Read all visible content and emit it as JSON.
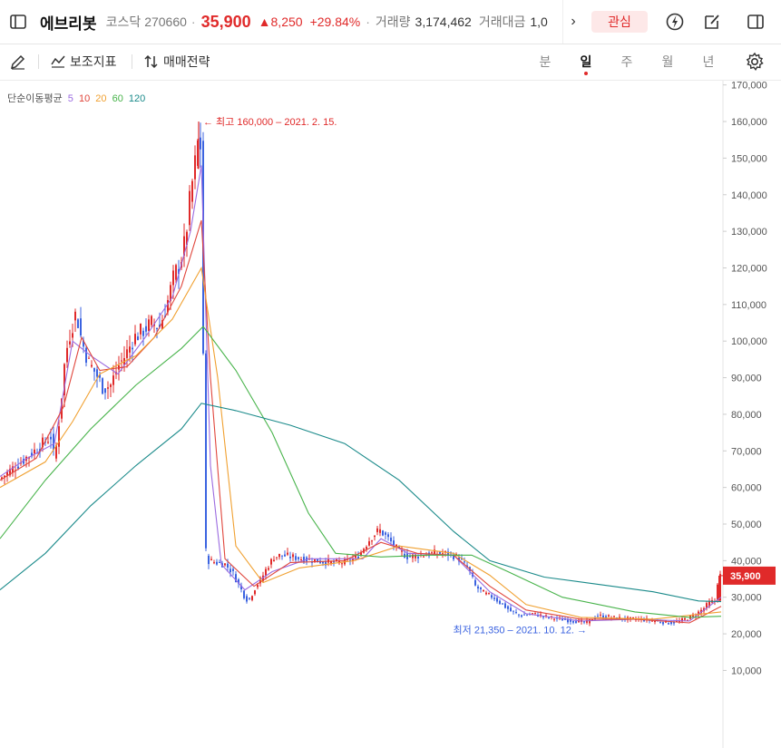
{
  "header": {
    "stock_name": "에브리봇",
    "market": "코스닥",
    "code": "270660",
    "price": "35,900",
    "change": "8,250",
    "change_pct": "+29.84%",
    "volume_label": "거래량",
    "volume": "3,174,462",
    "amount_label": "거래대금",
    "amount": "1,0",
    "favorite_label": "관심",
    "up_color": "#e02a2a"
  },
  "toolbar": {
    "indicator_label": "보조지표",
    "strategy_label": "매매전략",
    "periods": [
      "분",
      "일",
      "주",
      "월",
      "년"
    ],
    "active_period": "일"
  },
  "icons": [
    "panel-toggle-icon",
    "pencil-icon",
    "indicator-icon",
    "strategy-icon",
    "lightning-icon",
    "edit-icon",
    "sidebar-icon",
    "gear-icon",
    "chevron-right-icon"
  ],
  "chart_data": {
    "type": "candlestick",
    "legend": {
      "title": "단순이동평균",
      "items": [
        {
          "label": "5",
          "color": "#9b6be0"
        },
        {
          "label": "10",
          "color": "#e0463c"
        },
        {
          "label": "20",
          "color": "#f0a030"
        },
        {
          "label": "60",
          "color": "#47b34a"
        },
        {
          "label": "120",
          "color": "#1a8a8a"
        }
      ]
    },
    "y_axis": {
      "ticks": [
        10000,
        20000,
        30000,
        40000,
        50000,
        60000,
        70000,
        80000,
        90000,
        100000,
        110000,
        120000,
        130000,
        140000,
        150000,
        160000,
        170000
      ],
      "tick_labels": [
        "10,000",
        "20,000",
        "30,000",
        "40,000",
        "50,000",
        "60,000",
        "70,000",
        "80,000",
        "90,000",
        "100,000",
        "110,000",
        "120,000",
        "130,000",
        "140,000",
        "150,000",
        "160,000",
        "170,000"
      ],
      "range": [
        0,
        180000
      ],
      "position": "right"
    },
    "high_annotation": "← 최고 160,000 – 2021. 2. 15.",
    "low_annotation": "최저 21,350 – 2021. 10. 12. →",
    "current_price_label": "35,900",
    "current_price": 35900,
    "up_color": "#e02a2a",
    "down_color": "#3b63e0",
    "price_path": [
      [
        0,
        62000
      ],
      [
        20,
        66000
      ],
      [
        40,
        70000
      ],
      [
        58,
        74000
      ],
      [
        62,
        67000
      ],
      [
        68,
        80000
      ],
      [
        74,
        96000
      ],
      [
        80,
        103000
      ],
      [
        86,
        108000
      ],
      [
        92,
        100000
      ],
      [
        100,
        94000
      ],
      [
        108,
        91000
      ],
      [
        116,
        87000
      ],
      [
        124,
        88000
      ],
      [
        132,
        93000
      ],
      [
        140,
        96000
      ],
      [
        150,
        101000
      ],
      [
        160,
        103000
      ],
      [
        170,
        105000
      ],
      [
        178,
        104000
      ],
      [
        186,
        110000
      ],
      [
        194,
        118000
      ],
      [
        200,
        121000
      ],
      [
        206,
        127000
      ],
      [
        212,
        140000
      ],
      [
        218,
        150000
      ],
      [
        221,
        156000
      ],
      [
        224,
        152000
      ],
      [
        228,
        42000
      ],
      [
        232,
        40000
      ],
      [
        240,
        39500
      ],
      [
        250,
        39000
      ],
      [
        258,
        37000
      ],
      [
        266,
        33000
      ],
      [
        272,
        30000
      ],
      [
        276,
        29000
      ],
      [
        284,
        33000
      ],
      [
        290,
        35000
      ],
      [
        296,
        38000
      ],
      [
        304,
        41000
      ],
      [
        312,
        41500
      ],
      [
        324,
        41000
      ],
      [
        336,
        40500
      ],
      [
        350,
        40000
      ],
      [
        366,
        39500
      ],
      [
        380,
        39500
      ],
      [
        396,
        41000
      ],
      [
        410,
        46000
      ],
      [
        420,
        48500
      ],
      [
        430,
        46000
      ],
      [
        440,
        43000
      ],
      [
        452,
        41000
      ],
      [
        466,
        41500
      ],
      [
        480,
        42000
      ],
      [
        494,
        42000
      ],
      [
        506,
        41000
      ],
      [
        518,
        38000
      ],
      [
        526,
        33000
      ],
      [
        536,
        31000
      ],
      [
        546,
        30000
      ],
      [
        556,
        28000
      ],
      [
        566,
        26000
      ],
      [
        576,
        25000
      ],
      [
        590,
        25500
      ],
      [
        606,
        24500
      ],
      [
        620,
        24000
      ],
      [
        636,
        23500
      ],
      [
        648,
        23000
      ],
      [
        660,
        25000
      ],
      [
        676,
        24500
      ],
      [
        692,
        24000
      ],
      [
        708,
        24000
      ],
      [
        724,
        23500
      ],
      [
        740,
        23000
      ],
      [
        752,
        23500
      ],
      [
        762,
        24500
      ],
      [
        770,
        25500
      ],
      [
        778,
        27000
      ],
      [
        784,
        28500
      ],
      [
        790,
        29000
      ],
      [
        794,
        35900
      ]
    ],
    "ma5": [
      [
        0,
        63000
      ],
      [
        30,
        68000
      ],
      [
        60,
        72000
      ],
      [
        80,
        100000
      ],
      [
        100,
        96000
      ],
      [
        130,
        91000
      ],
      [
        160,
        101000
      ],
      [
        190,
        112000
      ],
      [
        210,
        130000
      ],
      [
        222,
        148000
      ],
      [
        232,
        66000
      ],
      [
        244,
        39000
      ],
      [
        270,
        32000
      ],
      [
        300,
        37000
      ],
      [
        340,
        40500
      ],
      [
        400,
        40500
      ],
      [
        420,
        46000
      ],
      [
        450,
        42000
      ],
      [
        500,
        41500
      ],
      [
        540,
        31500
      ],
      [
        580,
        25500
      ],
      [
        640,
        23500
      ],
      [
        700,
        24000
      ],
      [
        760,
        23500
      ],
      [
        795,
        30000
      ]
    ],
    "ma10": [
      [
        0,
        62000
      ],
      [
        40,
        68000
      ],
      [
        70,
        82000
      ],
      [
        90,
        101000
      ],
      [
        110,
        92000
      ],
      [
        140,
        93000
      ],
      [
        170,
        101000
      ],
      [
        200,
        115000
      ],
      [
        222,
        133000
      ],
      [
        232,
        90000
      ],
      [
        248,
        40500
      ],
      [
        280,
        33000
      ],
      [
        320,
        39500
      ],
      [
        380,
        40000
      ],
      [
        420,
        45000
      ],
      [
        460,
        42000
      ],
      [
        500,
        41500
      ],
      [
        540,
        33000
      ],
      [
        580,
        26500
      ],
      [
        640,
        24000
      ],
      [
        700,
        24000
      ],
      [
        760,
        23000
      ],
      [
        795,
        27500
      ]
    ],
    "ma20": [
      [
        0,
        60000
      ],
      [
        50,
        67000
      ],
      [
        80,
        78000
      ],
      [
        110,
        91000
      ],
      [
        150,
        96000
      ],
      [
        190,
        106000
      ],
      [
        222,
        120000
      ],
      [
        240,
        90000
      ],
      [
        260,
        44000
      ],
      [
        290,
        34000
      ],
      [
        330,
        38000
      ],
      [
        390,
        40000
      ],
      [
        440,
        44000
      ],
      [
        500,
        42000
      ],
      [
        540,
        36000
      ],
      [
        580,
        28000
      ],
      [
        640,
        24500
      ],
      [
        720,
        24000
      ],
      [
        795,
        26000
      ]
    ],
    "ma60": [
      [
        0,
        46000
      ],
      [
        50,
        62000
      ],
      [
        100,
        76000
      ],
      [
        150,
        88000
      ],
      [
        200,
        98000
      ],
      [
        224,
        104000
      ],
      [
        260,
        92000
      ],
      [
        300,
        75000
      ],
      [
        340,
        53000
      ],
      [
        370,
        42000
      ],
      [
        420,
        41000
      ],
      [
        470,
        41500
      ],
      [
        520,
        41500
      ],
      [
        560,
        37000
      ],
      [
        620,
        30000
      ],
      [
        700,
        26000
      ],
      [
        760,
        24500
      ],
      [
        795,
        24800
      ]
    ],
    "ma120": [
      [
        0,
        32000
      ],
      [
        50,
        42000
      ],
      [
        100,
        55000
      ],
      [
        150,
        66000
      ],
      [
        200,
        76000
      ],
      [
        222,
        83000
      ],
      [
        260,
        81000
      ],
      [
        320,
        77000
      ],
      [
        380,
        72000
      ],
      [
        440,
        62000
      ],
      [
        500,
        48000
      ],
      [
        540,
        40000
      ],
      [
        600,
        35500
      ],
      [
        660,
        33500
      ],
      [
        720,
        31500
      ],
      [
        770,
        29000
      ],
      [
        795,
        28800
      ]
    ]
  }
}
